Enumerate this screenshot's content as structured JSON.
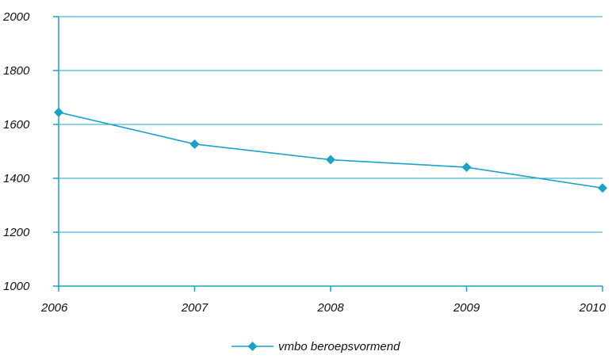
{
  "chart_data": {
    "type": "line",
    "title": "",
    "xlabel": "",
    "ylabel": "",
    "x": [
      "2006",
      "2007",
      "2008",
      "2009",
      "2010"
    ],
    "y_ticks": [
      "1000",
      "1200",
      "1400",
      "1600",
      "1800",
      "2000"
    ],
    "ylim": [
      1000,
      2000
    ],
    "grid": true,
    "legend_position": "bottom-center",
    "series": [
      {
        "name": "vmbo beroepsvormend",
        "values": [
          1645,
          1527,
          1469,
          1441,
          1364
        ],
        "color": "#1aa3c9",
        "marker": "diamond"
      }
    ]
  }
}
